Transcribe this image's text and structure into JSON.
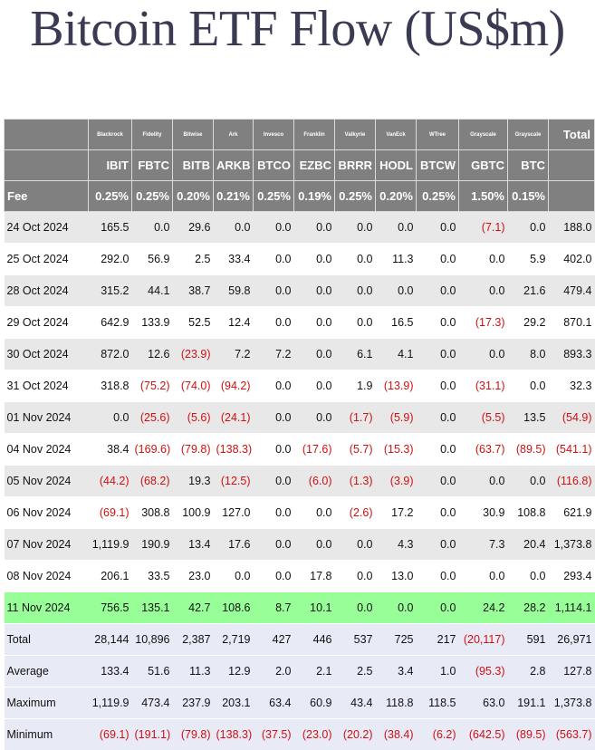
{
  "title": "Bitcoin ETF Flow (US$m)",
  "columns": [
    {
      "provider": "Blackrock",
      "ticker": "IBIT",
      "fee": "0.25%"
    },
    {
      "provider": "Fidelity",
      "ticker": "FBTC",
      "fee": "0.25%"
    },
    {
      "provider": "Bitwise",
      "ticker": "BITB",
      "fee": "0.20%"
    },
    {
      "provider": "Ark",
      "ticker": "ARKB",
      "fee": "0.21%"
    },
    {
      "provider": "Invesco",
      "ticker": "BTCO",
      "fee": "0.25%"
    },
    {
      "provider": "Franklin",
      "ticker": "EZBC",
      "fee": "0.19%"
    },
    {
      "provider": "Valkyrie",
      "ticker": "BRRR",
      "fee": "0.25%"
    },
    {
      "provider": "VanEck",
      "ticker": "HODL",
      "fee": "0.20%"
    },
    {
      "provider": "WTree",
      "ticker": "BTCW",
      "fee": "0.25%"
    },
    {
      "provider": "Grayscale",
      "ticker": "GBTC",
      "fee": "1.50%"
    },
    {
      "provider": "Grayscale",
      "ticker": "BTC",
      "fee": "0.15%"
    }
  ],
  "total_header": "Total",
  "fee_label": "Fee",
  "rows": [
    {
      "date": "24 Oct 2024",
      "values": [
        "165.5",
        "0.0",
        "29.6",
        "0.0",
        "0.0",
        "0.0",
        "0.0",
        "0.0",
        "0.0",
        "(7.1)",
        "0.0"
      ],
      "total": "188.0"
    },
    {
      "date": "25 Oct 2024",
      "values": [
        "292.0",
        "56.9",
        "2.5",
        "33.4",
        "0.0",
        "0.0",
        "0.0",
        "11.3",
        "0.0",
        "0.0",
        "5.9"
      ],
      "total": "402.0"
    },
    {
      "date": "28 Oct 2024",
      "values": [
        "315.2",
        "44.1",
        "38.7",
        "59.8",
        "0.0",
        "0.0",
        "0.0",
        "0.0",
        "0.0",
        "0.0",
        "21.6"
      ],
      "total": "479.4"
    },
    {
      "date": "29 Oct 2024",
      "values": [
        "642.9",
        "133.9",
        "52.5",
        "12.4",
        "0.0",
        "0.0",
        "0.0",
        "16.5",
        "0.0",
        "(17.3)",
        "29.2"
      ],
      "total": "870.1"
    },
    {
      "date": "30 Oct 2024",
      "values": [
        "872.0",
        "12.6",
        "(23.9)",
        "7.2",
        "7.2",
        "0.0",
        "6.1",
        "4.1",
        "0.0",
        "0.0",
        "8.0"
      ],
      "total": "893.3"
    },
    {
      "date": "31 Oct 2024",
      "values": [
        "318.8",
        "(75.2)",
        "(74.0)",
        "(94.2)",
        "0.0",
        "0.0",
        "1.9",
        "(13.9)",
        "0.0",
        "(31.1)",
        "0.0"
      ],
      "total": "32.3"
    },
    {
      "date": "01 Nov 2024",
      "values": [
        "0.0",
        "(25.6)",
        "(5.6)",
        "(24.1)",
        "0.0",
        "0.0",
        "(1.7)",
        "(5.9)",
        "0.0",
        "(5.5)",
        "13.5"
      ],
      "total": "(54.9)"
    },
    {
      "date": "04 Nov 2024",
      "values": [
        "38.4",
        "(169.6)",
        "(79.8)",
        "(138.3)",
        "0.0",
        "(17.6)",
        "(5.7)",
        "(15.3)",
        "0.0",
        "(63.7)",
        "(89.5)"
      ],
      "total": "(541.1)"
    },
    {
      "date": "05 Nov 2024",
      "values": [
        "(44.2)",
        "(68.2)",
        "19.3",
        "(12.5)",
        "0.0",
        "(6.0)",
        "(1.3)",
        "(3.9)",
        "0.0",
        "0.0",
        "0.0"
      ],
      "total": "(116.8)"
    },
    {
      "date": "06 Nov 2024",
      "values": [
        "(69.1)",
        "308.8",
        "100.9",
        "127.0",
        "0.0",
        "0.0",
        "(2.6)",
        "17.2",
        "0.0",
        "30.9",
        "108.8"
      ],
      "total": "621.9"
    },
    {
      "date": "07 Nov 2024",
      "values": [
        "1,119.9",
        "190.9",
        "13.4",
        "17.6",
        "0.0",
        "0.0",
        "0.0",
        "4.3",
        "0.0",
        "7.3",
        "20.4"
      ],
      "total": "1,373.8"
    },
    {
      "date": "08 Nov 2024",
      "values": [
        "206.1",
        "33.5",
        "23.0",
        "0.0",
        "0.0",
        "17.8",
        "0.0",
        "13.0",
        "0.0",
        "0.0",
        "0.0"
      ],
      "total": "293.4"
    },
    {
      "date": "11 Nov 2024",
      "values": [
        "756.5",
        "135.1",
        "42.7",
        "108.6",
        "8.7",
        "10.1",
        "0.0",
        "0.0",
        "0.0",
        "24.2",
        "28.2"
      ],
      "total": "1,114.1",
      "highlight": true
    }
  ],
  "summary": [
    {
      "label": "Total",
      "values": [
        "28,144",
        "10,896",
        "2,387",
        "2,719",
        "427",
        "446",
        "537",
        "725",
        "217",
        "(20,117)",
        "591"
      ],
      "total": "26,971"
    },
    {
      "label": "Average",
      "values": [
        "133.4",
        "51.6",
        "11.3",
        "12.9",
        "2.0",
        "2.1",
        "2.5",
        "3.4",
        "1.0",
        "(95.3)",
        "2.8"
      ],
      "total": "127.8"
    },
    {
      "label": "Maximum",
      "values": [
        "1,119.9",
        "473.4",
        "237.9",
        "203.1",
        "63.4",
        "60.9",
        "43.4",
        "118.8",
        "118.5",
        "63.0",
        "191.1"
      ],
      "total": "1,373.8"
    },
    {
      "label": "Minimum",
      "values": [
        "(69.1)",
        "(191.1)",
        "(79.8)",
        "(138.3)",
        "(37.5)",
        "(23.0)",
        "(20.2)",
        "(38.4)",
        "(6.2)",
        "(642.5)",
        "(89.5)"
      ],
      "total": "(563.7)"
    }
  ],
  "colors": {
    "header_bg": "#808080",
    "negative": "#d01010",
    "highlight_row": "#98ff98",
    "summary_bg": "#e8eaf6",
    "stripe": "#e8e8e8"
  }
}
